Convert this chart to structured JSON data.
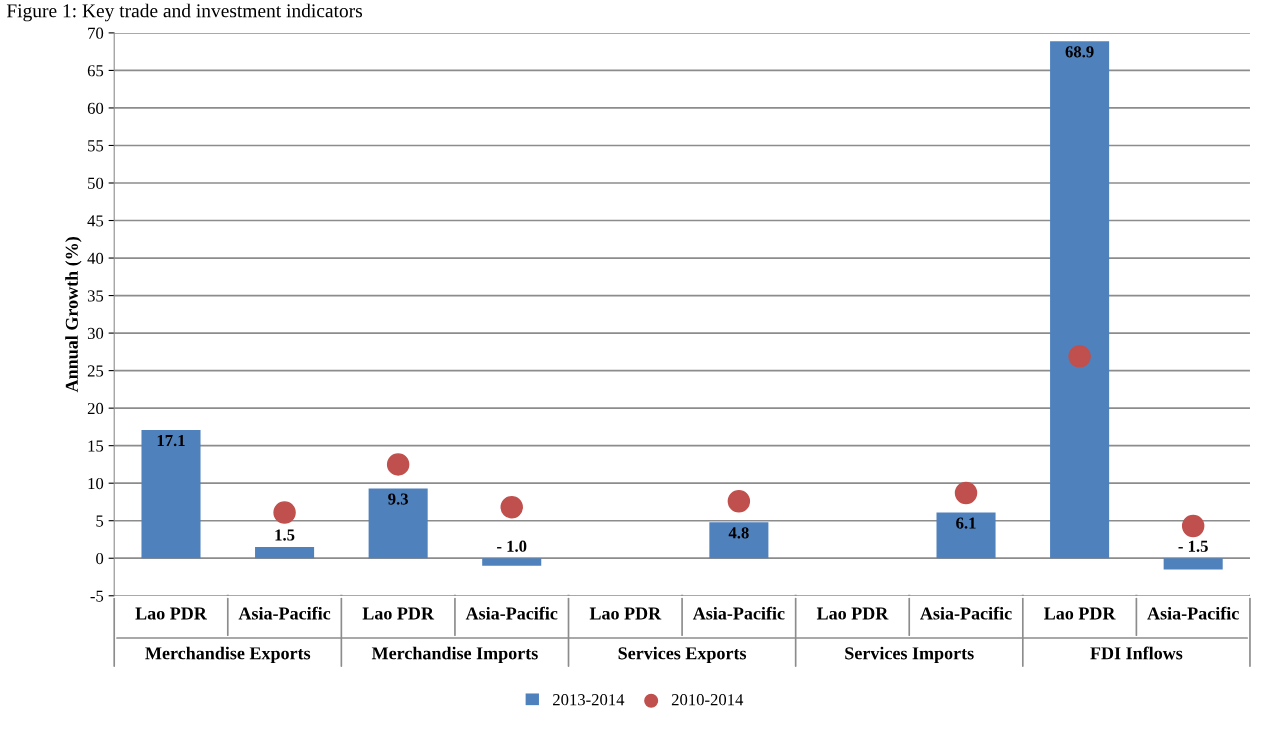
{
  "chart_data": {
    "type": "bar",
    "title": "Figure 1: Key trade and investment indicators",
    "ylabel": "Annual Growth (%)",
    "categories": [
      "Lao PDR",
      "Asia-Pacific",
      "Lao PDR",
      "Asia-Pacific",
      "Lao PDR",
      "Asia-Pacific",
      "Lao PDR",
      "Asia-Pacific",
      "Lao PDR",
      "Asia-Pacific"
    ],
    "series": [
      {
        "name": "2013-2014",
        "type": "bar",
        "color": "#4f81bd",
        "values": [
          17.1,
          1.5,
          9.3,
          -1.0,
          null,
          4.8,
          null,
          6.1,
          68.9,
          -1.5
        ],
        "value_labels": [
          "17.1",
          "1.5",
          "9.3",
          "- 1.0",
          null,
          "4.8",
          null,
          "6.1",
          "68.9",
          "- 1.5"
        ]
      },
      {
        "name": "2010-2014",
        "type": "scatter",
        "color": "#c0504d",
        "marker": "circle",
        "values": [
          null,
          6.1,
          12.5,
          6.8,
          null,
          7.6,
          null,
          8.7,
          26.9,
          4.3
        ]
      }
    ],
    "annotations": [
      "Merchandise Exports",
      "Merchandise Imports",
      "Services Exports",
      "Services Imports",
      "FDI Inflows"
    ],
    "ylim": [
      -5,
      70
    ],
    "yticks": [
      -5,
      0,
      5,
      10,
      15,
      20,
      25,
      30,
      35,
      40,
      45,
      50,
      55,
      60,
      65,
      70
    ],
    "grid": "y",
    "legend": "bottom"
  }
}
